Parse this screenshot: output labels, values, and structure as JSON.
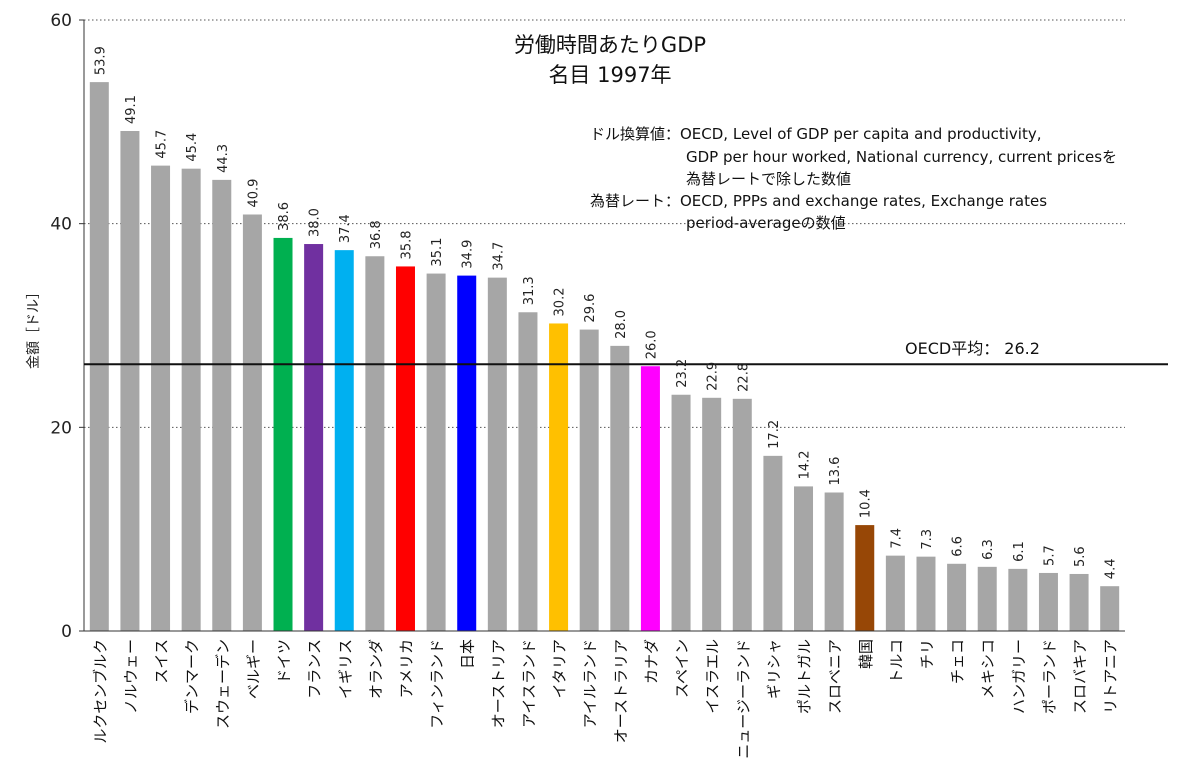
{
  "chart_data": {
    "type": "bar",
    "title": "労働時間あたりGDP",
    "subtitle": "名目 1997年",
    "ylabel": "金額［ドル］",
    "xlabel": "",
    "ylim": [
      0,
      60
    ],
    "yticks": [
      "0",
      "20",
      "40",
      "60"
    ],
    "grid": "dotted horizontal",
    "categories": [
      "ルクセンブルク",
      "ノルウェー",
      "スイス",
      "デンマーク",
      "スウェーデン",
      "ベルギー",
      "ドイツ",
      "フランス",
      "イギリス",
      "オランダ",
      "アメリカ",
      "フィンランド",
      "日本",
      "オーストリア",
      "アイスランド",
      "イタリア",
      "アイルランド",
      "オーストラリア",
      "カナダ",
      "スペイン",
      "イスラエル",
      "ニュージーランド",
      "ギリシャ",
      "ポルトガル",
      "スロベニア",
      "韓国",
      "トルコ",
      "チリ",
      "チェコ",
      "メキシコ",
      "ハンガリー",
      "ポーランド",
      "スロバキア",
      "リトアニア"
    ],
    "values": [
      53.9,
      49.1,
      45.7,
      45.4,
      44.3,
      40.9,
      38.6,
      38.0,
      37.4,
      36.8,
      35.8,
      35.1,
      34.9,
      34.7,
      31.3,
      30.2,
      29.6,
      28.0,
      26.0,
      23.2,
      22.9,
      22.8,
      17.2,
      14.2,
      13.6,
      10.4,
      7.4,
      7.3,
      6.6,
      6.3,
      6.1,
      5.7,
      5.6,
      4.4
    ],
    "value_labels": [
      "53.9",
      "49.1",
      "45.7",
      "45.4",
      "44.3",
      "40.9",
      "38.6",
      "38.0",
      "37.4",
      "36.8",
      "35.8",
      "35.1",
      "34.9",
      "34.7",
      "31.3",
      "30.2",
      "29.6",
      "28.0",
      "26.0",
      "23.2",
      "22.9",
      "22.8",
      "17.2",
      "14.2",
      "13.6",
      "10.4",
      "7.4",
      "7.3",
      "6.6",
      "6.3",
      "6.1",
      "5.7",
      "5.6",
      "4.4"
    ],
    "colors": [
      "#a6a6a6",
      "#a6a6a6",
      "#a6a6a6",
      "#a6a6a6",
      "#a6a6a6",
      "#a6a6a6",
      "#00b050",
      "#7030a0",
      "#00b0f0",
      "#a6a6a6",
      "#ff0000",
      "#a6a6a6",
      "#0000ff",
      "#a6a6a6",
      "#a6a6a6",
      "#ffc000",
      "#a6a6a6",
      "#a6a6a6",
      "#ff00ff",
      "#a6a6a6",
      "#a6a6a6",
      "#a6a6a6",
      "#a6a6a6",
      "#a6a6a6",
      "#a6a6a6",
      "#974706",
      "#a6a6a6",
      "#a6a6a6",
      "#a6a6a6",
      "#a6a6a6",
      "#a6a6a6",
      "#a6a6a6",
      "#a6a6a6",
      "#a6a6a6"
    ],
    "average": {
      "label": "OECD平均：",
      "value": 26.2,
      "value_label": "26.2"
    },
    "notes": [
      "ドル換算値：OECD, Level of GDP per capita and productivity,",
      "GDP per hour worked, National currency, current pricesを",
      "為替レートで除した数値",
      "為替レート：OECD, PPPs and exchange rates, Exchange rates",
      "period-averageの数値"
    ]
  }
}
